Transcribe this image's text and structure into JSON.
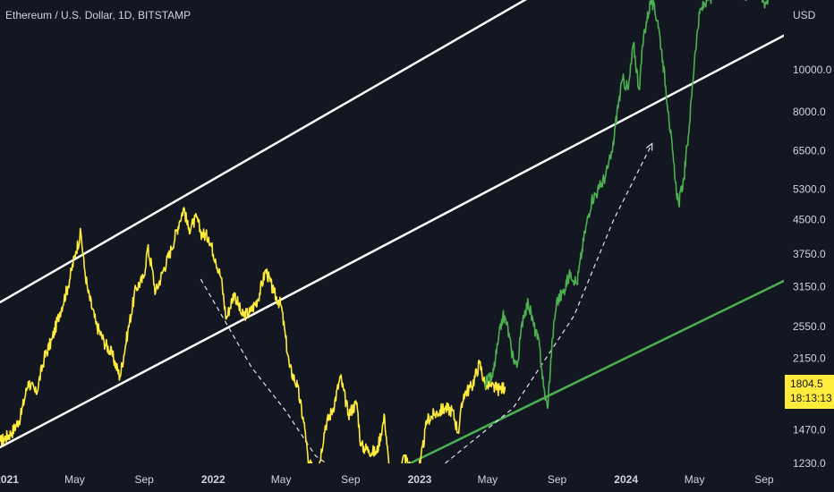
{
  "header": {
    "title": "Ethereum / U.S. Dollar, 1D, BITSTAMP",
    "currency": "USD"
  },
  "last_price": {
    "value": "1804.5",
    "countdown": "18:13:13"
  },
  "colors": {
    "background": "#131722",
    "history": "#ffeb3b",
    "projection": "#4caf50",
    "channel": "#ffffff",
    "support": "#4caf50",
    "text": "#d1d4dc"
  },
  "chart_data": {
    "type": "line",
    "yscale": "log",
    "ylim": [
      1230,
      14500
    ],
    "xlim": [
      "2020-12-20",
      "2024-10-06"
    ],
    "y_ticks": [
      10000,
      8000,
      6500,
      5300,
      4500,
      3750,
      3150,
      2550,
      2150,
      1470,
      1230
    ],
    "y_tick_labels": [
      "10000.0",
      "8000.0",
      "6500.0",
      "5300.0",
      "4500.0",
      "3750.0",
      "3150.0",
      "2550.0",
      "2150.0",
      "1470.0",
      "1230.0"
    ],
    "x_ticks": [
      {
        "label": "2021",
        "date": "2021-01-01",
        "bold": true
      },
      {
        "label": "May",
        "date": "2021-05-01",
        "bold": false
      },
      {
        "label": "Sep",
        "date": "2021-09-01",
        "bold": false
      },
      {
        "label": "2022",
        "date": "2022-01-01",
        "bold": true
      },
      {
        "label": "May",
        "date": "2022-05-01",
        "bold": false
      },
      {
        "label": "Sep",
        "date": "2022-09-01",
        "bold": false
      },
      {
        "label": "2023",
        "date": "2023-01-01",
        "bold": true
      },
      {
        "label": "May",
        "date": "2023-05-01",
        "bold": false
      },
      {
        "label": "Sep",
        "date": "2023-09-01",
        "bold": false
      },
      {
        "label": "2024",
        "date": "2024-01-01",
        "bold": true
      },
      {
        "label": "May",
        "date": "2024-05-01",
        "bold": false
      },
      {
        "label": "Sep",
        "date": "2024-09-01",
        "bold": false
      }
    ],
    "series": [
      {
        "role": "history",
        "color": "#ffeb3b",
        "points": [
          [
            "2020-12-20",
            1380
          ],
          [
            "2021-01-10",
            1450
          ],
          [
            "2021-01-25",
            1570
          ],
          [
            "2021-02-08",
            1900
          ],
          [
            "2021-02-22",
            1780
          ],
          [
            "2021-03-08",
            2150
          ],
          [
            "2021-03-22",
            2380
          ],
          [
            "2021-04-05",
            2750
          ],
          [
            "2021-04-19",
            3150
          ],
          [
            "2021-05-03",
            3800
          ],
          [
            "2021-05-12",
            4200
          ],
          [
            "2021-05-18",
            3500
          ],
          [
            "2021-05-25",
            3050
          ],
          [
            "2021-06-08",
            2580
          ],
          [
            "2021-06-22",
            2350
          ],
          [
            "2021-07-06",
            2200
          ],
          [
            "2021-07-20",
            1950
          ],
          [
            "2021-08-03",
            2480
          ],
          [
            "2021-08-17",
            3120
          ],
          [
            "2021-08-31",
            3300
          ],
          [
            "2021-09-07",
            3880
          ],
          [
            "2021-09-14",
            3520
          ],
          [
            "2021-09-21",
            3050
          ],
          [
            "2021-10-05",
            3450
          ],
          [
            "2021-10-19",
            3850
          ],
          [
            "2021-11-02",
            4450
          ],
          [
            "2021-11-10",
            4800
          ],
          [
            "2021-11-18",
            4280
          ],
          [
            "2021-11-26",
            4400
          ],
          [
            "2021-12-03",
            4550
          ],
          [
            "2021-12-10",
            4200
          ],
          [
            "2021-12-24",
            4100
          ],
          [
            "2022-01-05",
            3650
          ],
          [
            "2022-01-15",
            3300
          ],
          [
            "2022-01-24",
            2650
          ],
          [
            "2022-02-07",
            3050
          ],
          [
            "2022-02-21",
            2700
          ],
          [
            "2022-03-07",
            2750
          ],
          [
            "2022-03-21",
            2950
          ],
          [
            "2022-04-04",
            3450
          ],
          [
            "2022-04-18",
            3050
          ],
          [
            "2022-05-01",
            2850
          ],
          [
            "2022-05-09",
            2400
          ],
          [
            "2022-05-16",
            2050
          ],
          [
            "2022-05-30",
            1850
          ],
          [
            "2022-06-13",
            1450
          ],
          [
            "2022-06-18",
            1230
          ],
          [
            "2022-07-04",
            1150
          ],
          [
            "2022-07-18",
            1500
          ],
          [
            "2022-08-01",
            1650
          ],
          [
            "2022-08-14",
            1950
          ],
          [
            "2022-08-28",
            1600
          ],
          [
            "2022-09-12",
            1700
          ],
          [
            "2022-09-19",
            1350
          ],
          [
            "2022-10-03",
            1320
          ],
          [
            "2022-10-17",
            1300
          ],
          [
            "2022-10-31",
            1580
          ],
          [
            "2022-11-09",
            1150
          ],
          [
            "2022-11-21",
            1130
          ],
          [
            "2022-12-05",
            1280
          ],
          [
            "2022-12-19",
            1180
          ],
          [
            "2023-01-02",
            1220
          ],
          [
            "2023-01-14",
            1550
          ],
          [
            "2023-01-28",
            1600
          ],
          [
            "2023-02-14",
            1650
          ],
          [
            "2023-02-28",
            1630
          ],
          [
            "2023-03-10",
            1450
          ],
          [
            "2023-03-20",
            1780
          ],
          [
            "2023-04-03",
            1850
          ],
          [
            "2023-04-17",
            2100
          ],
          [
            "2023-04-26",
            1880
          ],
          [
            "2023-05-08",
            1850
          ],
          [
            "2023-05-22",
            1820
          ],
          [
            "2023-06-01",
            1850
          ]
        ]
      },
      {
        "role": "projection",
        "color": "#4caf50",
        "points": [
          [
            "2023-04-26",
            1880
          ],
          [
            "2023-05-10",
            1950
          ],
          [
            "2023-05-20",
            2350
          ],
          [
            "2023-05-28",
            2700
          ],
          [
            "2023-06-04",
            2600
          ],
          [
            "2023-06-12",
            2250
          ],
          [
            "2023-06-22",
            2050
          ],
          [
            "2023-07-03",
            2700
          ],
          [
            "2023-07-12",
            2900
          ],
          [
            "2023-07-22",
            2550
          ],
          [
            "2023-08-01",
            2300
          ],
          [
            "2023-08-08",
            1850
          ],
          [
            "2023-08-15",
            1650
          ],
          [
            "2023-08-24",
            2400
          ],
          [
            "2023-08-31",
            2900
          ],
          [
            "2023-09-11",
            3050
          ],
          [
            "2023-09-25",
            3400
          ],
          [
            "2023-10-06",
            3200
          ],
          [
            "2023-10-20",
            4200
          ],
          [
            "2023-11-01",
            5000
          ],
          [
            "2023-11-14",
            5300
          ],
          [
            "2023-11-26",
            5700
          ],
          [
            "2023-12-08",
            6500
          ],
          [
            "2023-12-16",
            8000
          ],
          [
            "2023-12-26",
            9500
          ],
          [
            "2024-01-05",
            9000
          ],
          [
            "2024-01-14",
            11500
          ],
          [
            "2024-01-24",
            9000
          ],
          [
            "2024-02-01",
            12000
          ],
          [
            "2024-02-14",
            14500
          ],
          [
            "2024-02-26",
            13000
          ],
          [
            "2024-03-06",
            10500
          ],
          [
            "2024-03-16",
            8000
          ],
          [
            "2024-03-28",
            5500
          ],
          [
            "2024-04-03",
            4900
          ],
          [
            "2024-04-12",
            5600
          ],
          [
            "2024-04-22",
            7500
          ],
          [
            "2024-05-02",
            11000
          ],
          [
            "2024-05-10",
            13500
          ],
          [
            "2024-05-22",
            14500
          ],
          [
            "2024-06-10",
            15000
          ],
          [
            "2024-07-05",
            15500
          ],
          [
            "2024-08-01",
            14900
          ],
          [
            "2024-08-20",
            15500
          ],
          [
            "2024-09-01",
            14300
          ],
          [
            "2024-09-08",
            14500
          ]
        ]
      }
    ],
    "lines": [
      {
        "role": "channel-upper",
        "color": "#ffffff",
        "points": [
          [
            "2020-12-20",
            2900
          ],
          [
            "2024-05-15",
            25000
          ]
        ]
      },
      {
        "role": "channel-lower",
        "color": "#ffffff",
        "points": [
          [
            "2020-12-20",
            1340
          ],
          [
            "2024-10-06",
            12000
          ]
        ]
      },
      {
        "role": "support",
        "color": "#4caf50",
        "points": [
          [
            "2022-12-15",
            1230
          ],
          [
            "2024-10-06",
            3250
          ]
        ]
      }
    ],
    "arrows": [
      {
        "role": "decline-path",
        "points": [
          [
            "2021-12-10",
            3280
          ],
          [
            "2022-03-10",
            2050
          ],
          [
            "2022-05-10",
            1620
          ],
          [
            "2022-07-01",
            1280
          ],
          [
            "2022-07-20",
            1230
          ]
        ]
      },
      {
        "role": "recovery-path",
        "points": [
          [
            "2023-02-15",
            1230
          ],
          [
            "2023-06-15",
            1650
          ],
          [
            "2023-10-01",
            2700
          ],
          [
            "2023-12-10",
            4500
          ],
          [
            "2024-02-16",
            6750
          ]
        ]
      }
    ]
  }
}
